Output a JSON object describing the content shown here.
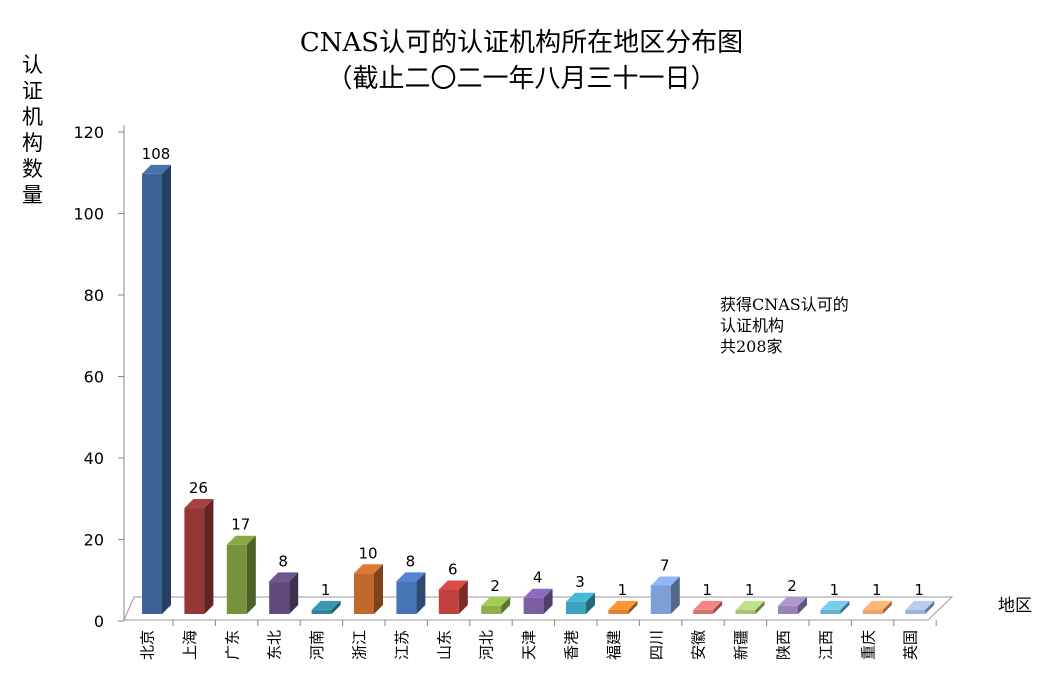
{
  "chart_data": {
    "type": "bar",
    "title": "CNAS认可的认证机构所在地区分布图",
    "subtitle": "（截止二〇二一年八月三十一日）",
    "xlabel": "地区",
    "ylabel": "认证机构数量",
    "ylim": [
      0,
      120
    ],
    "yticks": [
      0,
      20,
      40,
      60,
      80,
      100,
      120
    ],
    "grid": false,
    "legend": "none",
    "annotation": "获得CNAS认可的\n认证机构\n共208家",
    "categories": [
      "北京",
      "上海",
      "广东",
      "东北",
      "河南",
      "浙江",
      "江苏",
      "山东",
      "河北",
      "天津",
      "香港",
      "福建",
      "四川",
      "安徽",
      "新疆",
      "陕西",
      "江西",
      "重庆",
      "英国"
    ],
    "values": [
      108,
      26,
      17,
      8,
      1,
      10,
      8,
      6,
      2,
      4,
      3,
      1,
      7,
      1,
      1,
      2,
      1,
      1,
      1
    ],
    "colors": [
      "#3b6396",
      "#953735",
      "#77933c",
      "#604a7b",
      "#31849b",
      "#c0692a",
      "#4674b4",
      "#c0413d",
      "#8eb14b",
      "#7b5ea4",
      "#3aa2bd",
      "#e0812e",
      "#7d9fd6",
      "#d27675",
      "#a5c47a",
      "#9784b5",
      "#67b3cc",
      "#f19f69",
      "#9fb1d1"
    ]
  }
}
